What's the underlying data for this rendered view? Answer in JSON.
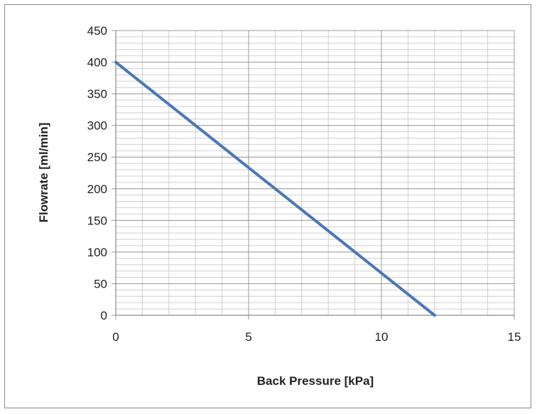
{
  "chart_data": {
    "type": "line",
    "title": "",
    "xlabel": "Back Pressure [kPa]",
    "ylabel": "Flowrate [ml/min]",
    "xlim": [
      0,
      15
    ],
    "ylim": [
      0,
      450
    ],
    "x_ticks": [
      0,
      5,
      10,
      15
    ],
    "y_ticks": [
      0,
      50,
      100,
      150,
      200,
      250,
      300,
      350,
      400,
      450
    ],
    "x_minor_step": 1,
    "y_minor_step": 10,
    "grid": true,
    "legend": "none",
    "series": [
      {
        "x": [
          0,
          12
        ],
        "y": [
          400,
          0
        ],
        "color": "#4a78b5"
      }
    ],
    "colors": {
      "line": "#4a78b5",
      "major_grid": "#9a9a9a",
      "minor_grid": "#cfcfcf",
      "frame": "#8c8c8c"
    }
  }
}
